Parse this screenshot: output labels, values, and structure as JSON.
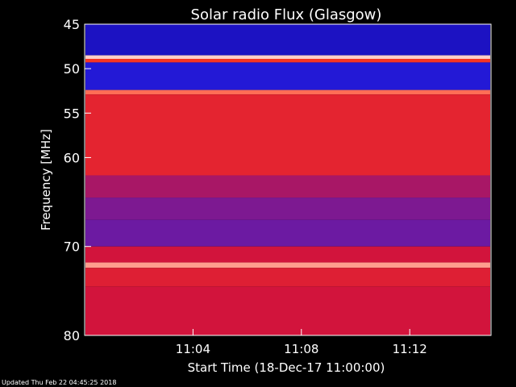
{
  "chart_data": {
    "type": "heatmap",
    "title": "Solar radio Flux (Glasgow)",
    "xlabel": "Start Time (18-Dec-17 11:00:00)",
    "ylabel": "Frequency [MHz]",
    "ylim": [
      45,
      80
    ],
    "y_direction": "downward",
    "y_ticks": [
      45,
      50,
      55,
      60,
      70,
      80
    ],
    "x_ticks": [
      "11:04",
      "11:08",
      "11:12"
    ],
    "x_range_minutes": [
      0,
      15
    ],
    "x_tick_minutes": [
      4,
      8,
      12
    ],
    "colormap": "blue-red-white (low to high intensity)",
    "colors": {
      "background": "#000000",
      "low": "#0000c8",
      "mid": "#d02020",
      "high": "#ffffff"
    },
    "bands": [
      {
        "from": 45.0,
        "to": 48.5,
        "level": 0.12
      },
      {
        "from": 48.5,
        "to": 48.9,
        "level": 0.95
      },
      {
        "from": 48.9,
        "to": 49.3,
        "level": 0.75
      },
      {
        "from": 49.3,
        "to": 52.4,
        "level": 0.22
      },
      {
        "from": 52.4,
        "to": 52.9,
        "level": 0.85
      },
      {
        "from": 52.9,
        "to": 62.0,
        "level": 0.62
      },
      {
        "from": 62.0,
        "to": 64.5,
        "level": 0.45
      },
      {
        "from": 64.5,
        "to": 67.0,
        "level": 0.4
      },
      {
        "from": 67.0,
        "to": 70.0,
        "level": 0.38
      },
      {
        "from": 70.0,
        "to": 71.8,
        "level": 0.5
      },
      {
        "from": 71.8,
        "to": 72.4,
        "level": 0.9
      },
      {
        "from": 72.4,
        "to": 74.5,
        "level": 0.58
      },
      {
        "from": 74.5,
        "to": 80.0,
        "level": 0.5
      }
    ],
    "footer": "Updated Thu Feb 22 04:45:25 2018"
  }
}
